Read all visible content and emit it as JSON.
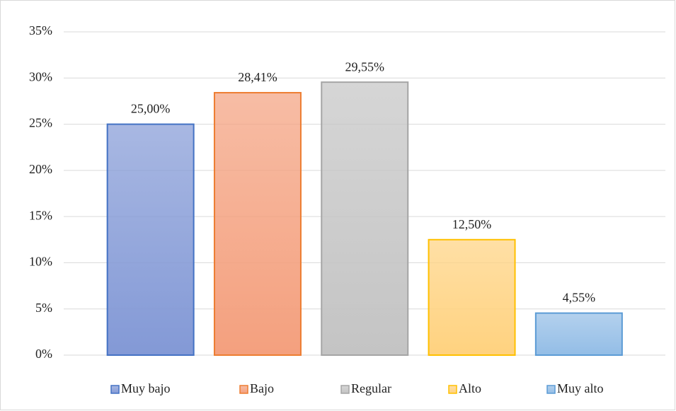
{
  "chart_data": {
    "type": "bar",
    "categories": [
      "Muy bajo",
      "Bajo",
      "Regular",
      "Alto",
      "Muy alto"
    ],
    "values": [
      25,
      28.41,
      29.55,
      12.5,
      4.55
    ],
    "value_labels": [
      "25,00%",
      "28,41%",
      "29,55%",
      "12,50%",
      "4,55%"
    ],
    "colors": [
      "#8399d6",
      "#f4a07e",
      "#c4c4c4",
      "#ffd27f",
      "#93bde6"
    ],
    "edge_colors": [
      "#4472c4",
      "#ed7d31",
      "#a5a5a5",
      "#ffc000",
      "#5b9bd5"
    ],
    "ylim": [
      0,
      35
    ],
    "yticks": [
      {
        "value": 0,
        "label": "0%"
      },
      {
        "value": 5,
        "label": "5%"
      },
      {
        "value": 10,
        "label": "10%"
      },
      {
        "value": 15,
        "label": "15%"
      },
      {
        "value": 20,
        "label": "20%"
      },
      {
        "value": 25,
        "label": "25%"
      },
      {
        "value": 30,
        "label": "30%"
      },
      {
        "value": 35,
        "label": "35%"
      }
    ],
    "grid": true,
    "legend": "bottom"
  }
}
